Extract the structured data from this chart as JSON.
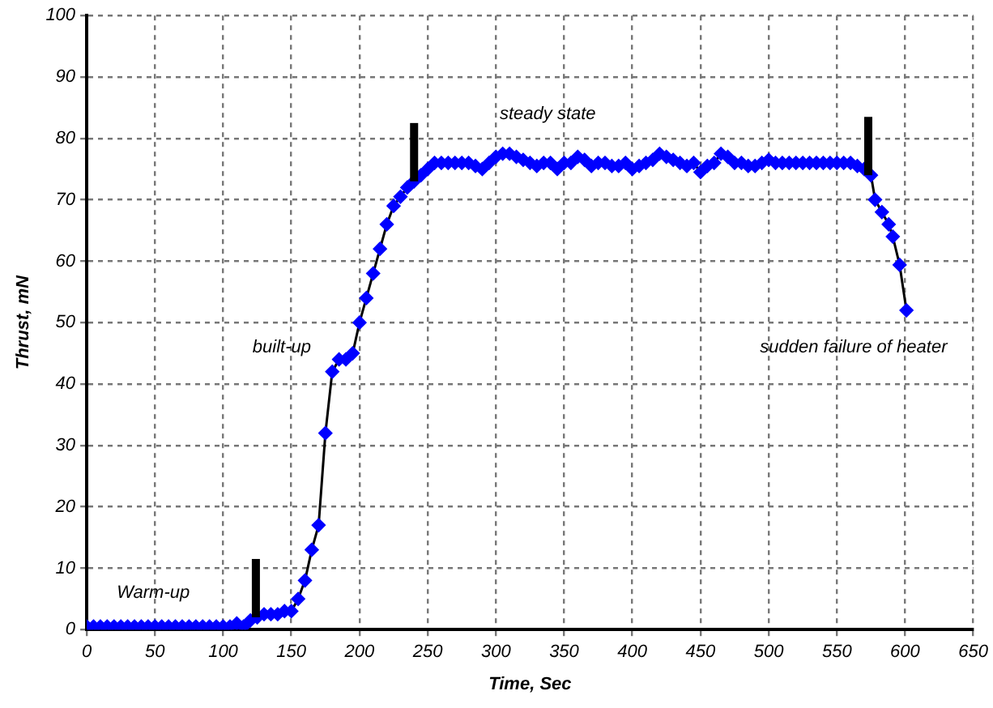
{
  "chart_data": {
    "type": "line",
    "xlabel": "Time, Sec",
    "ylabel": "Thrust, mN",
    "x": [
      0,
      5,
      10,
      15,
      20,
      25,
      30,
      35,
      40,
      45,
      50,
      55,
      60,
      65,
      70,
      75,
      80,
      85,
      90,
      95,
      100,
      105,
      110,
      115,
      120,
      125,
      130,
      135,
      140,
      145,
      150,
      155,
      160,
      165,
      170,
      175,
      180,
      185,
      190,
      195,
      200,
      205,
      210,
      215,
      220,
      225,
      230,
      235,
      240,
      245,
      250,
      255,
      260,
      265,
      270,
      275,
      280,
      285,
      290,
      295,
      300,
      305,
      310,
      315,
      320,
      325,
      330,
      335,
      340,
      345,
      350,
      355,
      360,
      365,
      370,
      375,
      380,
      385,
      390,
      395,
      400,
      405,
      410,
      415,
      420,
      425,
      430,
      435,
      440,
      445,
      450,
      455,
      460,
      465,
      470,
      475,
      480,
      485,
      490,
      495,
      500,
      505,
      510,
      515,
      520,
      525,
      530,
      535,
      540,
      545,
      550,
      555,
      560,
      565,
      570,
      575,
      578,
      583,
      588,
      591,
      596,
      601
    ],
    "series": [
      {
        "color": "#0000ff",
        "values": [
          0.5,
          0.5,
          0.5,
          0.5,
          0.5,
          0.5,
          0.5,
          0.5,
          0.5,
          0.5,
          0.5,
          0.5,
          0.5,
          0.5,
          0.5,
          0.5,
          0.5,
          0.5,
          0.5,
          0.5,
          0.5,
          0.5,
          1,
          0.5,
          1.5,
          2,
          2.5,
          2.5,
          2.5,
          3,
          3,
          5,
          8,
          13,
          17,
          32,
          42,
          44,
          44,
          45,
          50,
          54,
          58,
          62,
          66,
          69,
          70.5,
          72,
          73,
          74,
          75,
          76,
          76,
          76,
          76,
          76,
          76,
          75.5,
          75,
          76,
          77,
          77.5,
          77.5,
          77,
          76.5,
          76,
          75.5,
          76,
          76,
          75,
          76,
          76,
          77,
          76.5,
          75.5,
          76,
          76,
          75.5,
          75.5,
          76,
          75,
          75.5,
          76,
          76.5,
          77.5,
          77,
          76.5,
          76,
          75.5,
          76,
          74.5,
          75.5,
          76,
          77.5,
          77,
          76,
          76,
          75.5,
          75.5,
          76,
          76.5,
          76,
          76,
          76,
          76,
          76,
          76,
          76,
          76,
          76,
          76,
          76,
          76,
          75.5,
          75,
          74,
          70,
          68,
          66,
          64,
          59.4,
          52
        ]
      }
    ],
    "xlim": [
      0,
      650
    ],
    "xticks": [
      0,
      50,
      100,
      150,
      200,
      250,
      300,
      350,
      400,
      450,
      500,
      550,
      600,
      650
    ],
    "ylim": [
      0,
      100
    ],
    "yticks": [
      0,
      10,
      20,
      30,
      40,
      50,
      60,
      70,
      80,
      90,
      100
    ],
    "grid": true,
    "legend": false,
    "marker": "diamond",
    "line_style": "solid",
    "ref_lines": [
      {
        "axis": "x",
        "value": 124,
        "color": "#000000"
      },
      {
        "axis": "x",
        "value": 240,
        "color": "#000000"
      },
      {
        "axis": "x",
        "value": 573,
        "color": "#000000"
      }
    ],
    "annotations": [
      "Warm-up",
      "built-up",
      "steady state",
      "sudden failure of heater"
    ]
  }
}
